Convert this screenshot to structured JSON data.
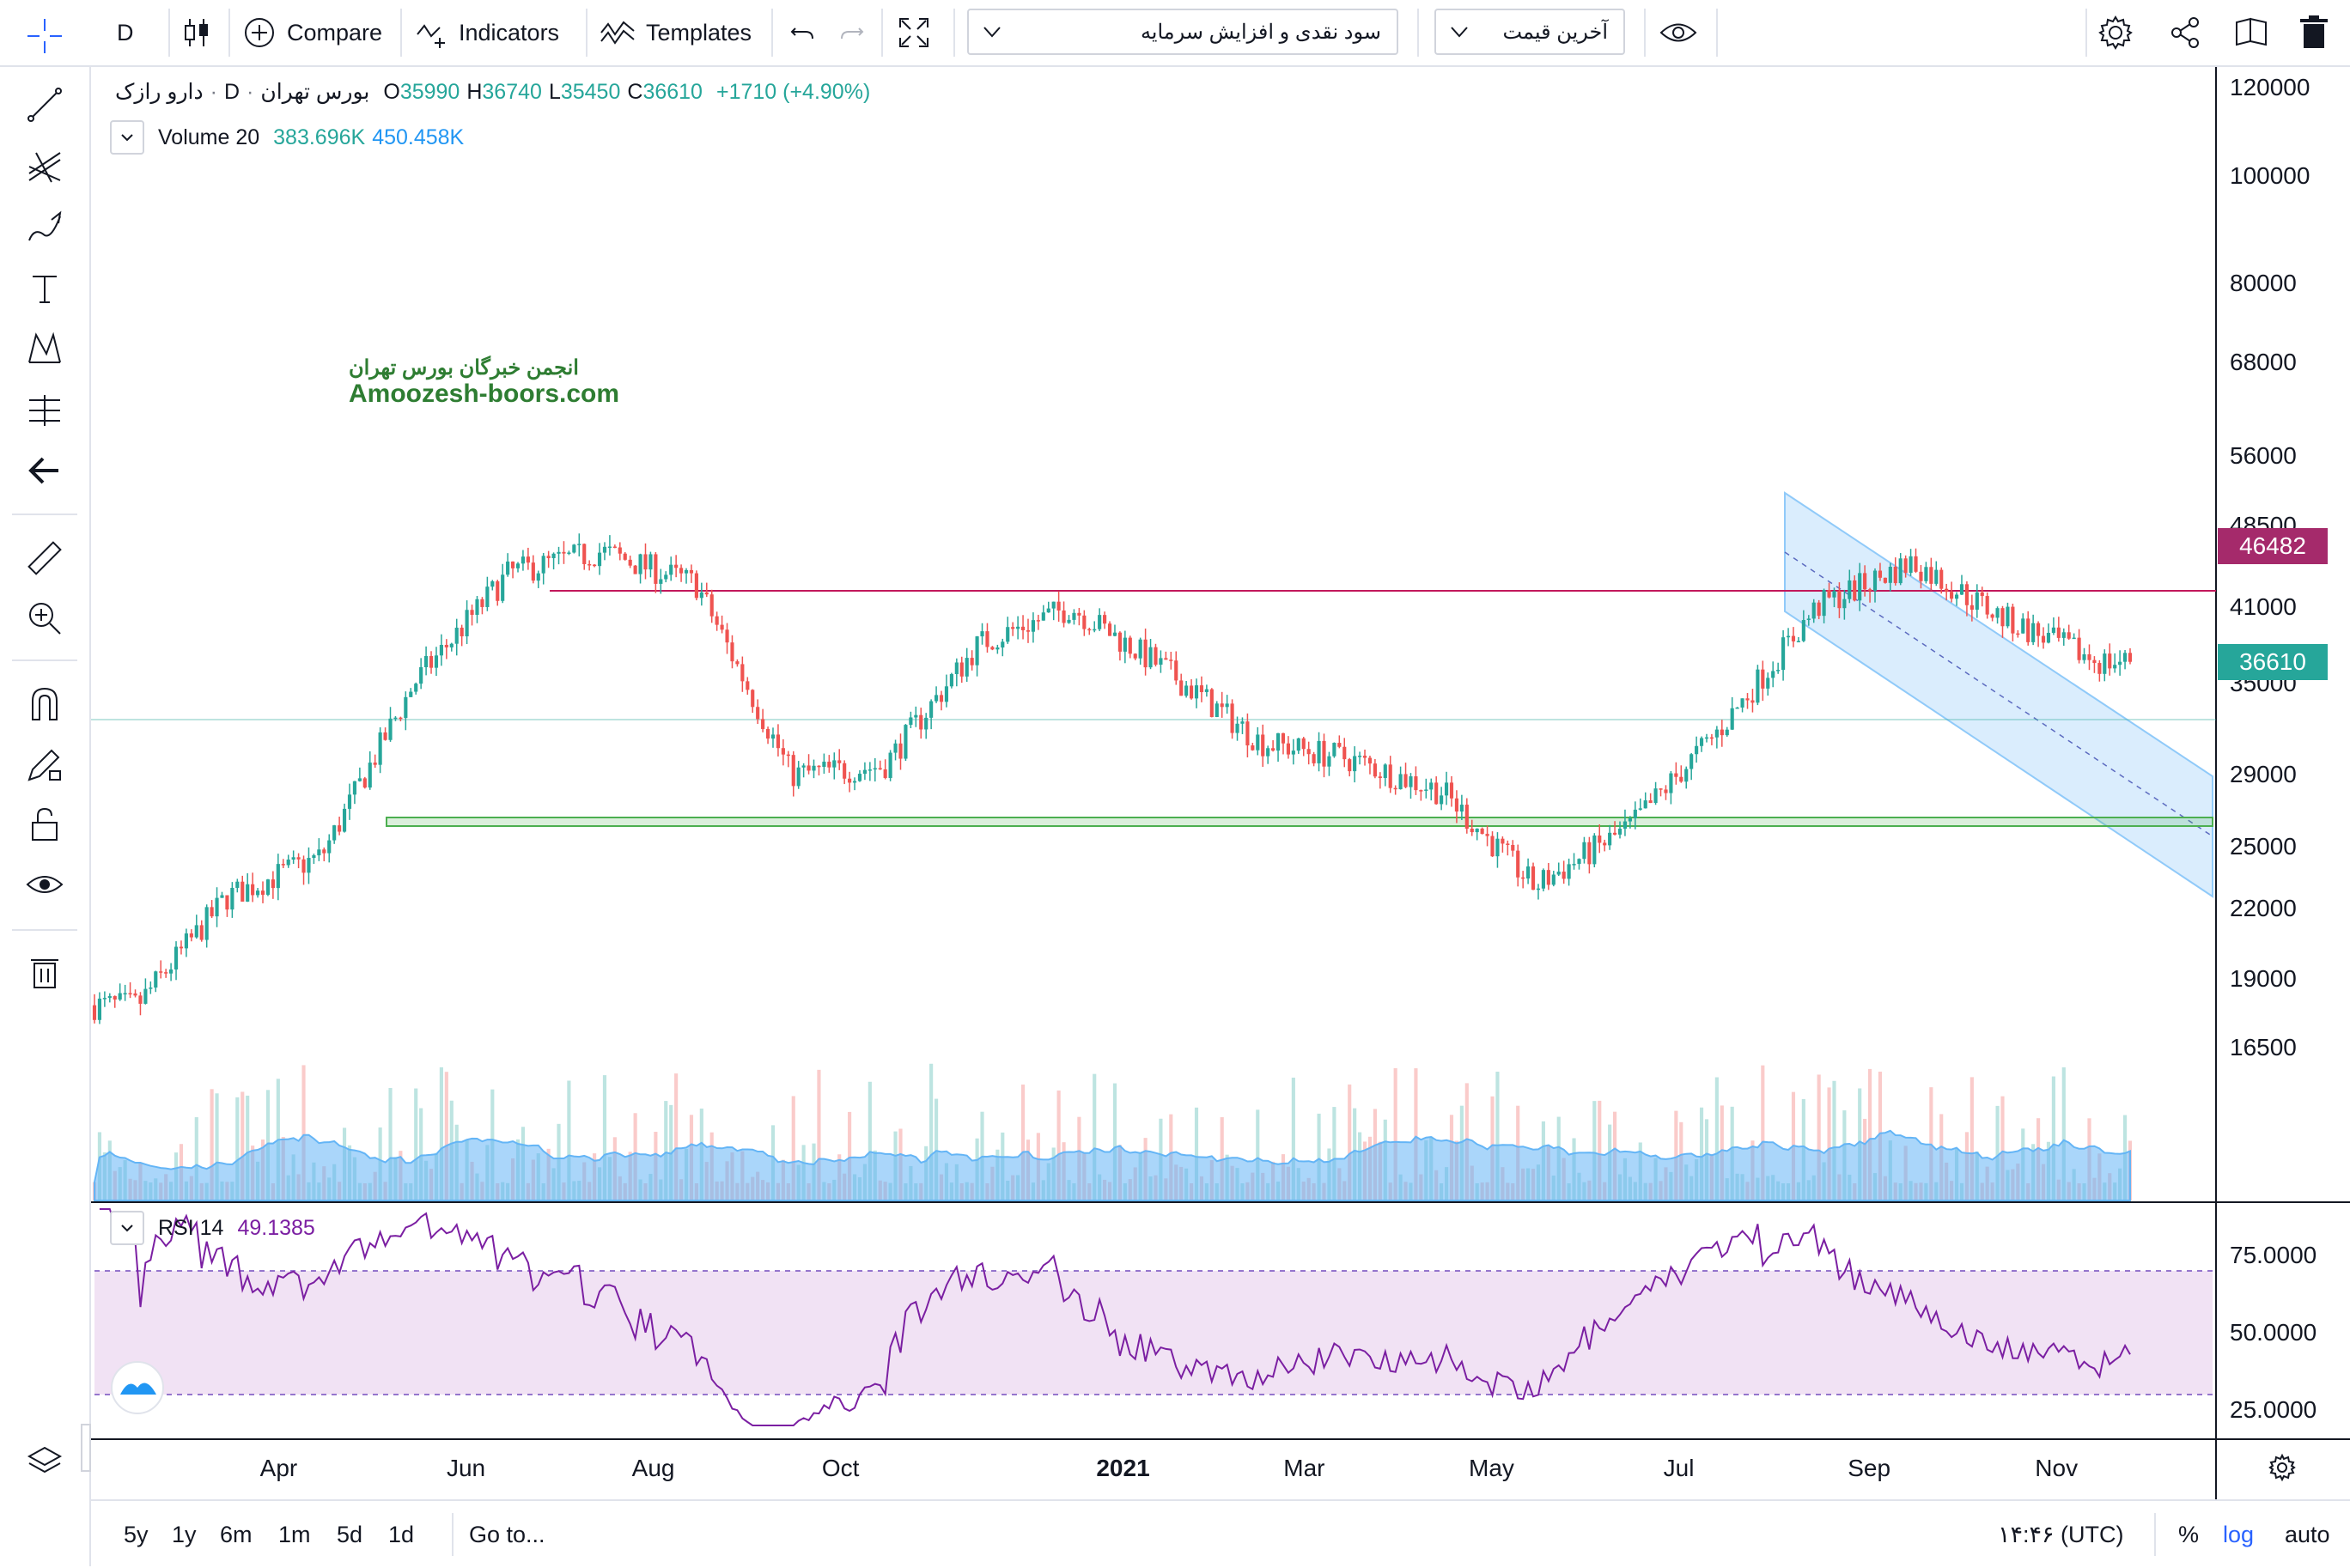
{
  "toolbar": {
    "interval": "D",
    "compare_label": "Compare",
    "indicators_label": "Indicators",
    "templates_label": "Templates",
    "study_dropdown": "سود نقدی و افزایش سرمایه",
    "price_dropdown": "آخرین قیمت"
  },
  "legend": {
    "symbol": "دارو رازک",
    "interval": "D",
    "exchange": "بورس تهران",
    "open_label": "O",
    "open": "35990",
    "high_label": "H",
    "high": "36740",
    "low_label": "L",
    "low": "35450",
    "close_label": "C",
    "close": "36610",
    "change": "+1710 (+4.90%)",
    "volume_name": "Volume 20",
    "volume_value": "383.696K",
    "volume_ma": "450.458K",
    "rsi_name": "RSI 14",
    "rsi_value": "49.1385"
  },
  "watermark": {
    "line1": "انجمن خبرگان بورس تهران",
    "line2": "Amoozesh-boors.com"
  },
  "price_scale": [
    "120000",
    "100000",
    "80000",
    "68000",
    "56000",
    "48500",
    "41000",
    "35000",
    "29000",
    "25000",
    "22000",
    "19000",
    "16500"
  ],
  "price_tags": [
    {
      "value": "46482",
      "color": "#a52a6b"
    },
    {
      "value": "36610",
      "color": "#26a69a"
    }
  ],
  "rsi_scale": [
    "75.0000",
    "50.0000",
    "25.0000"
  ],
  "time_scale": [
    "Apr",
    "Jun",
    "Aug",
    "Oct",
    "2021",
    "Mar",
    "May",
    "Jul",
    "Sep",
    "Nov"
  ],
  "bottom": {
    "ranges": [
      "5y",
      "1y",
      "6m",
      "1m",
      "5d",
      "1d"
    ],
    "goto": "Go to...",
    "clock": "۱۴:۴۶ (UTC)",
    "percent": "%",
    "log": "log",
    "auto": "auto"
  },
  "colors": {
    "up": "#26a69a",
    "down": "#ef5350",
    "resistance": "#c2185b",
    "support": "#4caf50",
    "channel": "#2962ff",
    "rsi": "#7b1fa2",
    "volume_ma": "#64b5f6"
  },
  "chart_data": {
    "type": "candlestick",
    "symbol": "دارو رازک",
    "scale": "log",
    "last_close": 36610,
    "resistance_level": 46482,
    "support_zone": [
      29800,
      30600
    ],
    "close_series": [
      {
        "date": "2020-02",
        "close": 18000
      },
      {
        "date": "2020-03",
        "close": 22500
      },
      {
        "date": "2020-04",
        "close": 24500
      },
      {
        "date": "2020-05",
        "close": 35000
      },
      {
        "date": "2020-06",
        "close": 44000
      },
      {
        "date": "2020-07",
        "close": 46000
      },
      {
        "date": "2020-08",
        "close": 43000
      },
      {
        "date": "2020-09",
        "close": 29000
      },
      {
        "date": "2020-10",
        "close": 29500
      },
      {
        "date": "2020-11",
        "close": 38000
      },
      {
        "date": "2020-12",
        "close": 41000
      },
      {
        "date": "2021-01",
        "close": 36000
      },
      {
        "date": "2021-02",
        "close": 31000
      },
      {
        "date": "2021-03",
        "close": 30000
      },
      {
        "date": "2021-04",
        "close": 28000
      },
      {
        "date": "2021-05",
        "close": 23000
      },
      {
        "date": "2021-06",
        "close": 26000
      },
      {
        "date": "2021-07",
        "close": 32000
      },
      {
        "date": "2021-08",
        "close": 41000
      },
      {
        "date": "2021-09",
        "close": 45000
      },
      {
        "date": "2021-10",
        "close": 40000
      },
      {
        "date": "2021-11",
        "close": 36610
      }
    ],
    "rsi_levels": [
      70,
      30
    ]
  }
}
